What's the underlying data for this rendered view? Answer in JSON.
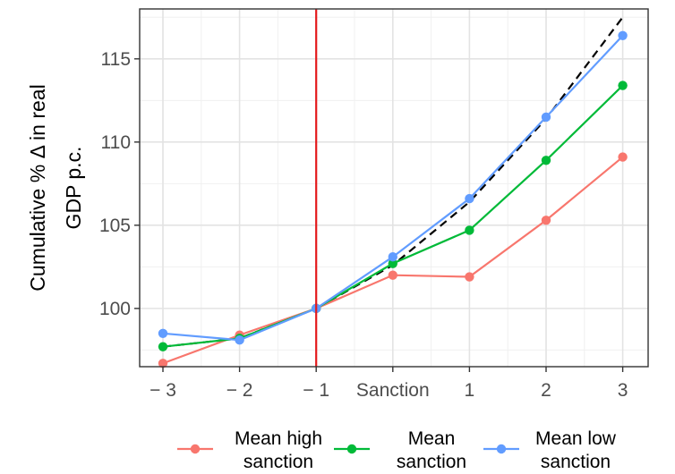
{
  "chart_data": {
    "type": "line",
    "title": "",
    "xlabel": "",
    "ylabel_lines": [
      "Cumulative % Δ in real",
      "GDP p.c."
    ],
    "categories": [
      "− 3",
      "− 2",
      "− 1",
      "Sanction",
      "1",
      "2",
      "3"
    ],
    "yticks": [
      100,
      105,
      110,
      115
    ],
    "ylim": [
      96.5,
      118.0
    ],
    "grid": true,
    "reference_line": {
      "category_index": 2,
      "color": "#e41a1c"
    },
    "series": [
      {
        "name": "Mean high sanction",
        "legend_lines": [
          "Mean high",
          "sanction"
        ],
        "color": "#f8766d",
        "values": [
          96.7,
          98.4,
          100.0,
          102.0,
          101.9,
          105.3,
          109.1
        ]
      },
      {
        "name": "Mean sanction",
        "legend_lines": [
          "Mean",
          "sanction"
        ],
        "color": "#00ba38",
        "values": [
          97.7,
          98.2,
          100.0,
          102.7,
          104.7,
          108.9,
          113.4
        ]
      },
      {
        "name": "Mean low sanction",
        "legend_lines": [
          "Mean low",
          "sanction"
        ],
        "color": "#619cff",
        "values": [
          98.5,
          98.1,
          100.0,
          103.1,
          106.6,
          111.5,
          116.4
        ]
      }
    ],
    "trend_line": {
      "style": "dashed",
      "color": "#000000",
      "values": [
        97.7,
        98.2,
        100.0,
        102.6,
        106.4,
        111.4,
        117.5
      ]
    },
    "legend_position": "bottom"
  }
}
